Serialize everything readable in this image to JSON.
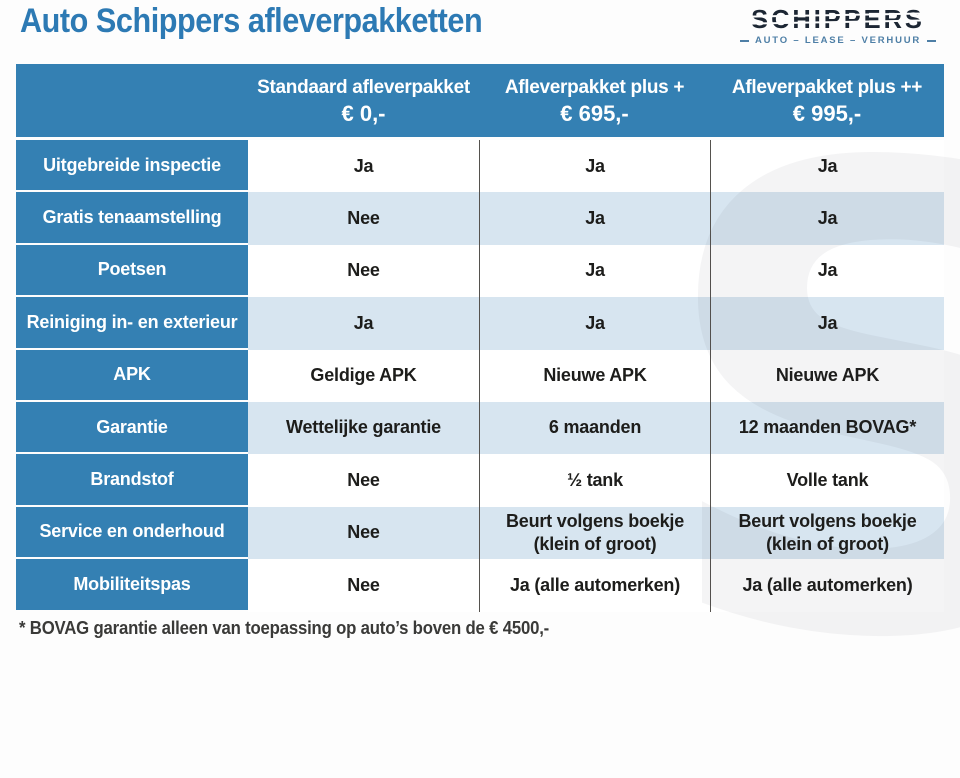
{
  "page": {
    "title": "Auto Schippers afleverpakketten",
    "footnote": "* BOVAG garantie alleen van toepassing op auto’s boven de € 4500,-"
  },
  "logo": {
    "name": "SCHIPPERS",
    "tagline": "AUTO – LEASE – VERHUUR",
    "watermark_glyph": "S"
  },
  "colors": {
    "title_blue": "#2d7ab4",
    "header_blue": "#3480b3",
    "row_alt_blue": "#d7e5f0",
    "logo_navy": "#1c2633",
    "tagline_blue": "#4e7fa6",
    "data_text": "#1d1d1b"
  },
  "table": {
    "columns": [
      {
        "title": "Standaard afleverpakket",
        "price": "€ 0,-"
      },
      {
        "title": "Afleverpakket plus +",
        "price": "€ 695,-"
      },
      {
        "title": "Afleverpakket plus ++",
        "price": "€ 995,-"
      }
    ],
    "rows": [
      {
        "label": "Uitgebreide inspectie",
        "cells": [
          "Ja",
          "Ja",
          "Ja"
        ]
      },
      {
        "label": "Gratis tenaamstelling",
        "cells": [
          "Nee",
          "Ja",
          "Ja"
        ]
      },
      {
        "label": "Poetsen",
        "cells": [
          "Nee",
          "Ja",
          "Ja"
        ]
      },
      {
        "label": "Reiniging in- en exterieur",
        "cells": [
          "Ja",
          "Ja",
          "Ja"
        ]
      },
      {
        "label": "APK",
        "cells": [
          "Geldige APK",
          "Nieuwe APK",
          "Nieuwe APK"
        ]
      },
      {
        "label": "Garantie",
        "cells": [
          "Wettelijke garantie",
          "6 maanden",
          "12 maanden BOVAG*"
        ]
      },
      {
        "label": "Brandstof",
        "cells": [
          "Nee",
          "½ tank",
          "Volle tank"
        ]
      },
      {
        "label": "Service en onderhoud",
        "cells": [
          "Nee",
          "Beurt volgens boekje (klein of groot)",
          "Beurt volgens boekje (klein of groot)"
        ]
      },
      {
        "label": "Mobiliteitspas",
        "cells": [
          "Nee",
          "Ja (alle automerken)",
          "Ja (alle automerken)"
        ]
      }
    ]
  }
}
